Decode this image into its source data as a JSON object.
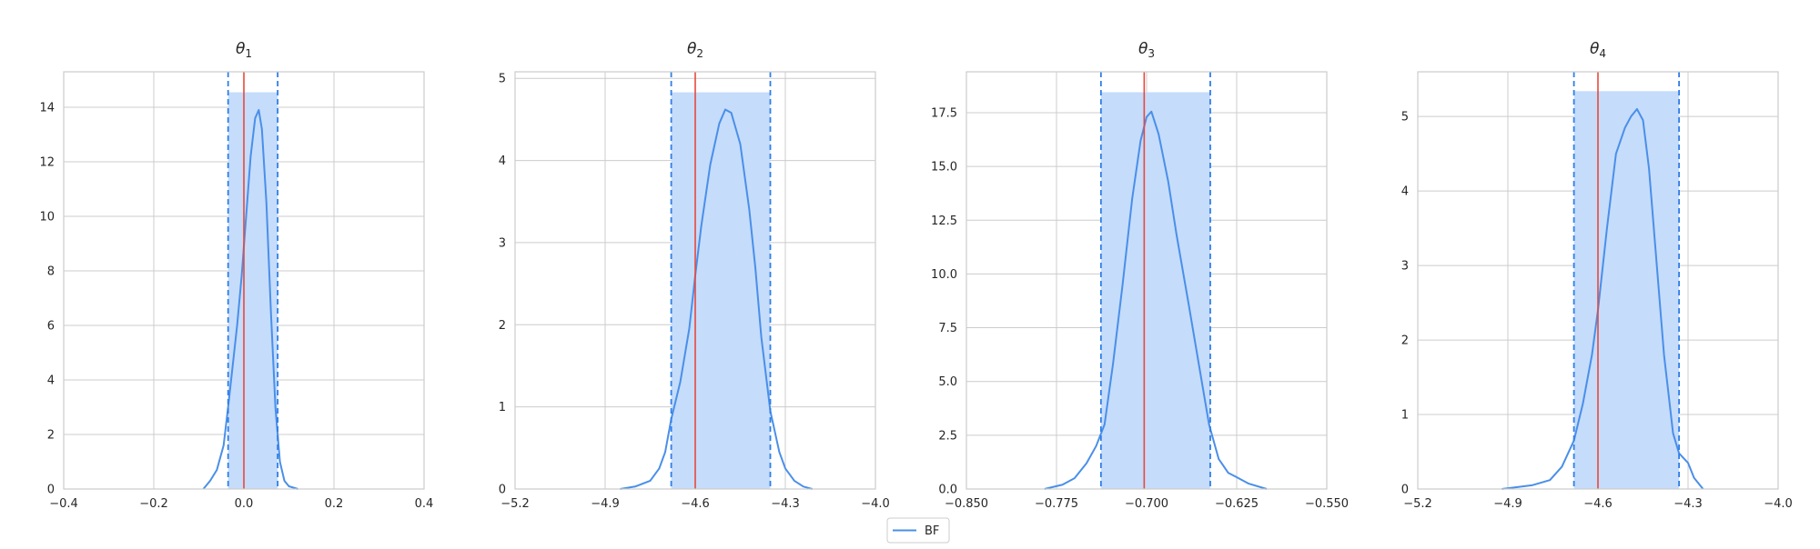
{
  "colors": {
    "kde_line": "#4a8fe8",
    "band_fill": "#c5dcfb",
    "interval_line": "#2f7fe8",
    "true_value": "#e8493c",
    "grid": "#cccccc",
    "frame": "#cccccc"
  },
  "legend": {
    "label": "BF",
    "placement": "bottom-center"
  },
  "chart_data": [
    {
      "type": "line",
      "title": "θ1",
      "title_symbol": "θ",
      "title_sub": "1",
      "xlim": [
        -0.4,
        0.4
      ],
      "ylim": [
        0,
        15.3
      ],
      "xticks": [
        -0.4,
        -0.2,
        0.0,
        0.2,
        0.4
      ],
      "xtick_labels": [
        "−0.4",
        "−0.2",
        "0.0",
        "0.2",
        "0.4"
      ],
      "yticks": [
        0,
        2,
        4,
        6,
        8,
        10,
        12,
        14
      ],
      "ytick_labels": [
        "0",
        "2",
        "4",
        "6",
        "8",
        "10",
        "12",
        "14"
      ],
      "grid": true,
      "true_value": 0.0,
      "interval": [
        -0.035,
        0.075
      ],
      "band_top": 14.55,
      "series": [
        {
          "name": "BF",
          "x": [
            -0.09,
            -0.075,
            -0.06,
            -0.045,
            -0.035,
            -0.025,
            -0.015,
            -0.005,
            0.005,
            0.015,
            0.025,
            0.033,
            0.04,
            0.05,
            0.06,
            0.07,
            0.08,
            0.09,
            0.1,
            0.11,
            0.12
          ],
          "y": [
            0.0,
            0.3,
            0.7,
            1.6,
            3.0,
            4.5,
            6.0,
            7.8,
            10.0,
            12.2,
            13.6,
            13.9,
            13.2,
            10.5,
            6.5,
            3.0,
            1.0,
            0.3,
            0.1,
            0.05,
            0.0
          ]
        }
      ]
    },
    {
      "type": "line",
      "title": "θ2",
      "title_symbol": "θ",
      "title_sub": "2",
      "xlim": [
        -5.2,
        -4.0
      ],
      "ylim": [
        0,
        5.08
      ],
      "xticks": [
        -5.2,
        -4.9,
        -4.6,
        -4.3,
        -4.0
      ],
      "xtick_labels": [
        "−5.2",
        "−4.9",
        "−4.6",
        "−4.3",
        "−4.0"
      ],
      "yticks": [
        0,
        1,
        2,
        3,
        4,
        5
      ],
      "ytick_labels": [
        "0",
        "1",
        "2",
        "3",
        "4",
        "5"
      ],
      "grid": true,
      "true_value": -4.6,
      "interval": [
        -4.68,
        -4.35
      ],
      "band_top": 4.83,
      "series": [
        {
          "name": "BF",
          "x": [
            -4.85,
            -4.8,
            -4.75,
            -4.72,
            -4.7,
            -4.68,
            -4.65,
            -4.62,
            -4.6,
            -4.58,
            -4.55,
            -4.52,
            -4.5,
            -4.48,
            -4.45,
            -4.42,
            -4.4,
            -4.38,
            -4.35,
            -4.32,
            -4.3,
            -4.27,
            -4.24,
            -4.21
          ],
          "y": [
            0.0,
            0.03,
            0.1,
            0.25,
            0.45,
            0.85,
            1.3,
            1.95,
            2.6,
            3.2,
            3.95,
            4.45,
            4.62,
            4.58,
            4.2,
            3.4,
            2.7,
            1.85,
            0.95,
            0.45,
            0.25,
            0.1,
            0.03,
            0.0
          ]
        }
      ]
    },
    {
      "type": "line",
      "title": "θ3",
      "title_symbol": "θ",
      "title_sub": "3",
      "xlim": [
        -0.85,
        -0.55
      ],
      "ylim": [
        0,
        19.4
      ],
      "xticks": [
        -0.85,
        -0.775,
        -0.7,
        -0.625,
        -0.55
      ],
      "xtick_labels": [
        "−0.850",
        "−0.775",
        "−0.700",
        "−0.625",
        "−0.550"
      ],
      "yticks": [
        0,
        2.5,
        5,
        7.5,
        10,
        12.5,
        15,
        17.5
      ],
      "ytick_labels": [
        "0.0",
        "2.5",
        "5.0",
        "7.5",
        "10.0",
        "12.5",
        "15.0",
        "17.5"
      ],
      "grid": true,
      "true_value": -0.702,
      "interval": [
        -0.738,
        -0.647
      ],
      "band_top": 18.45,
      "series": [
        {
          "name": "BF",
          "x": [
            -0.785,
            -0.77,
            -0.76,
            -0.75,
            -0.742,
            -0.735,
            -0.728,
            -0.72,
            -0.712,
            -0.705,
            -0.7,
            -0.696,
            -0.69,
            -0.682,
            -0.675,
            -0.665,
            -0.655,
            -0.648,
            -0.64,
            -0.632,
            -0.625,
            -0.615,
            -0.6
          ],
          "y": [
            0.0,
            0.2,
            0.5,
            1.2,
            2.0,
            3.0,
            5.8,
            9.5,
            13.5,
            16.2,
            17.3,
            17.55,
            16.5,
            14.3,
            11.8,
            8.6,
            5.3,
            3.0,
            1.4,
            0.75,
            0.55,
            0.25,
            0.0
          ]
        }
      ]
    },
    {
      "type": "line",
      "title": "θ4",
      "title_symbol": "θ",
      "title_sub": "4",
      "xlim": [
        -5.2,
        -4.0
      ],
      "ylim": [
        0,
        5.6
      ],
      "xticks": [
        -5.2,
        -4.9,
        -4.6,
        -4.3,
        -4.0
      ],
      "xtick_labels": [
        "−5.2",
        "−4.9",
        "−4.6",
        "−4.3",
        "−4.0"
      ],
      "yticks": [
        0,
        1,
        2,
        3,
        4,
        5
      ],
      "ytick_labels": [
        "0",
        "1",
        "2",
        "3",
        "4",
        "5"
      ],
      "grid": true,
      "true_value": -4.6,
      "interval": [
        -4.68,
        -4.33
      ],
      "band_top": 5.34,
      "series": [
        {
          "name": "BF",
          "x": [
            -4.92,
            -4.88,
            -4.82,
            -4.76,
            -4.72,
            -4.68,
            -4.65,
            -4.62,
            -4.6,
            -4.57,
            -4.54,
            -4.51,
            -4.49,
            -4.47,
            -4.45,
            -4.43,
            -4.41,
            -4.38,
            -4.35,
            -4.33,
            -4.3,
            -4.28,
            -4.25
          ],
          "y": [
            0.0,
            0.02,
            0.05,
            0.12,
            0.3,
            0.65,
            1.15,
            1.8,
            2.4,
            3.5,
            4.5,
            4.85,
            5.0,
            5.1,
            4.95,
            4.3,
            3.3,
            1.8,
            0.75,
            0.48,
            0.35,
            0.15,
            0.0
          ]
        }
      ]
    }
  ]
}
